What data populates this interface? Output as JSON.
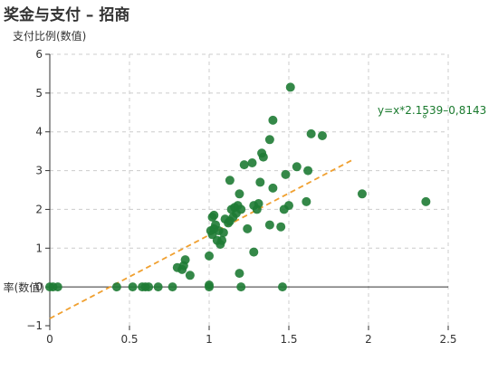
{
  "chart_data": {
    "type": "scatter",
    "title": "奖金与支付 – 招商",
    "xlabel": "率(数值)",
    "ylabel": "支付比例(数值)",
    "xlim": [
      0,
      2.5
    ],
    "ylim": [
      -1,
      6
    ],
    "x_ticks": [
      "0",
      "0.5",
      "1",
      "1.5",
      "2",
      "2.5"
    ],
    "y_ticks": [
      "−1",
      "0",
      "1",
      "2",
      "3",
      "4",
      "5",
      "6"
    ],
    "grid": true,
    "point_color": "#1e7b34",
    "trendline_color": "#f0a030",
    "trendline": {
      "slope": 2.1539,
      "intercept": -0.8143,
      "x_range": [
        0,
        1.9
      ],
      "label": "y=x*2.1539–0,8143"
    },
    "points": [
      [
        0.0,
        0.0
      ],
      [
        0.02,
        0.0
      ],
      [
        0.05,
        0.0
      ],
      [
        0.42,
        0.0
      ],
      [
        0.52,
        0.0
      ],
      [
        0.58,
        0.0
      ],
      [
        0.6,
        0.0
      ],
      [
        0.62,
        0.0
      ],
      [
        0.68,
        0.0
      ],
      [
        0.77,
        0.0
      ],
      [
        1.0,
        0.0
      ],
      [
        1.0,
        0.05
      ],
      [
        1.2,
        0.0
      ],
      [
        1.46,
        0.0
      ],
      [
        0.8,
        0.5
      ],
      [
        0.83,
        0.45
      ],
      [
        0.84,
        0.55
      ],
      [
        0.85,
        0.7
      ],
      [
        0.88,
        0.3
      ],
      [
        1.19,
        0.35
      ],
      [
        1.0,
        0.8
      ],
      [
        1.28,
        0.9
      ],
      [
        1.05,
        1.2
      ],
      [
        1.07,
        1.1
      ],
      [
        1.08,
        1.2
      ],
      [
        1.09,
        1.4
      ],
      [
        1.01,
        1.45
      ],
      [
        1.02,
        1.35
      ],
      [
        1.03,
        1.5
      ],
      [
        1.04,
        1.6
      ],
      [
        1.06,
        1.45
      ],
      [
        1.02,
        1.8
      ],
      [
        1.03,
        1.85
      ],
      [
        1.1,
        1.75
      ],
      [
        1.12,
        1.65
      ],
      [
        1.13,
        1.7
      ],
      [
        1.15,
        1.8
      ],
      [
        1.17,
        1.9
      ],
      [
        1.14,
        2.0
      ],
      [
        1.16,
        2.05
      ],
      [
        1.18,
        2.1
      ],
      [
        1.2,
        2.0
      ],
      [
        1.19,
        2.4
      ],
      [
        1.13,
        2.75
      ],
      [
        1.22,
        3.15
      ],
      [
        1.24,
        1.5
      ],
      [
        1.28,
        2.1
      ],
      [
        1.27,
        3.2
      ],
      [
        1.3,
        2.0
      ],
      [
        1.31,
        2.15
      ],
      [
        1.32,
        2.7
      ],
      [
        1.33,
        3.45
      ],
      [
        1.34,
        3.35
      ],
      [
        1.38,
        1.6
      ],
      [
        1.38,
        3.8
      ],
      [
        1.4,
        4.3
      ],
      [
        1.4,
        2.55
      ],
      [
        1.45,
        1.55
      ],
      [
        1.47,
        2.0
      ],
      [
        1.48,
        2.9
      ],
      [
        1.5,
        2.1
      ],
      [
        1.51,
        5.15
      ],
      [
        1.55,
        3.1
      ],
      [
        1.61,
        2.2
      ],
      [
        1.62,
        3.0
      ],
      [
        1.64,
        3.95
      ],
      [
        1.71,
        3.9
      ],
      [
        1.96,
        2.4
      ],
      [
        2.36,
        2.2
      ]
    ]
  }
}
